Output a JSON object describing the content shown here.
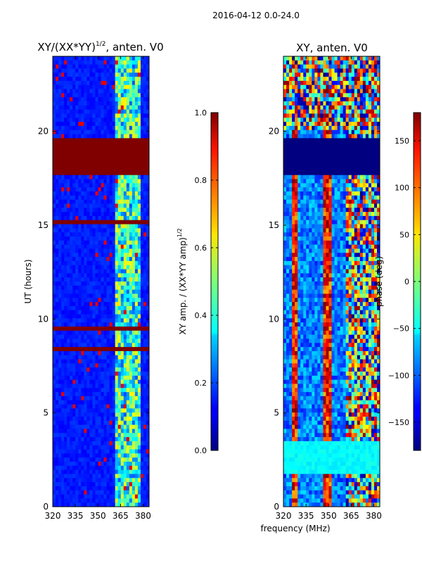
{
  "suptitle": "2016-04-12 0.0-24.0",
  "shared_xlabel": "frequency (MHz)",
  "chart_data": [
    {
      "type": "heatmap",
      "title_main": "XY/(XX*YY)",
      "title_sup": "1/2",
      "title_rest": ", anten. V0",
      "xlabel": "",
      "ylabel": "UT (hours)",
      "xlim": [
        320,
        384
      ],
      "ylim": [
        0,
        24
      ],
      "xticks": [
        320,
        335,
        350,
        365,
        380
      ],
      "yticks": [
        0,
        5,
        10,
        15,
        20
      ],
      "colorbar": {
        "label_main": "XY amp. / (XX*YY amp)",
        "label_sup": "1/2",
        "range": [
          0.0,
          1.0
        ],
        "ticks": [
          "0.0",
          "0.2",
          "0.4",
          "0.6",
          "0.8",
          "1.0"
        ],
        "tick_values": [
          0.0,
          0.2,
          0.4,
          0.6,
          0.8,
          1.0
        ]
      },
      "description_bands": [
        {
          "from": 17.6,
          "to": 19.7,
          "value": 1.0
        },
        {
          "from": 15.1,
          "to": 15.3,
          "value": 1.0
        },
        {
          "from": 9.4,
          "to": 9.6,
          "value": 1.0
        },
        {
          "from": 8.4,
          "to": 8.6,
          "value": 1.0
        }
      ]
    },
    {
      "type": "heatmap",
      "title_main": "XY, anten. V0",
      "xlabel": "",
      "ylabel": "",
      "xlim": [
        320,
        384
      ],
      "ylim": [
        0,
        24
      ],
      "xticks": [
        320,
        335,
        350,
        365,
        380
      ],
      "yticks": [
        0,
        5,
        10,
        15,
        20
      ],
      "colorbar": {
        "label_main": "phase (deg)",
        "range": [
          -180,
          180
        ],
        "ticks": [
          "−150",
          "−100",
          "−50",
          "0",
          "50",
          "100",
          "150"
        ],
        "tick_values": [
          -150,
          -100,
          -50,
          0,
          50,
          100,
          150
        ]
      },
      "description_bands": [
        {
          "from": 17.6,
          "to": 19.7,
          "value": -180
        }
      ]
    }
  ]
}
